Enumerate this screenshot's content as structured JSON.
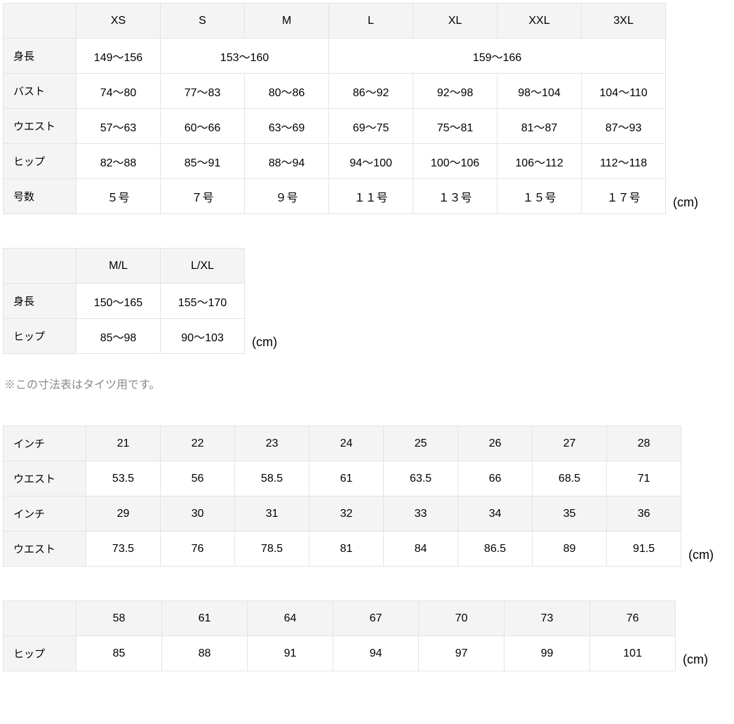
{
  "unit": "(cm)",
  "table1": {
    "sizes": [
      "XS",
      "S",
      "M",
      "L",
      "XL",
      "XXL",
      "3XL"
    ],
    "rows": [
      {
        "label": "身長",
        "cells": [
          {
            "text": "149〜156",
            "span": 1
          },
          {
            "text": "153〜160",
            "span": 2
          },
          {
            "text": "159〜166",
            "span": 4
          }
        ]
      },
      {
        "label": "バスト",
        "cells": [
          {
            "text": "74〜80"
          },
          {
            "text": "77〜83"
          },
          {
            "text": "80〜86"
          },
          {
            "text": "86〜92"
          },
          {
            "text": "92〜98"
          },
          {
            "text": "98〜104"
          },
          {
            "text": "104〜110"
          }
        ]
      },
      {
        "label": "ウエスト",
        "cells": [
          {
            "text": "57〜63"
          },
          {
            "text": "60〜66"
          },
          {
            "text": "63〜69"
          },
          {
            "text": "69〜75"
          },
          {
            "text": "75〜81"
          },
          {
            "text": "81〜87"
          },
          {
            "text": "87〜93"
          }
        ]
      },
      {
        "label": "ヒップ",
        "cells": [
          {
            "text": "82〜88"
          },
          {
            "text": "85〜91"
          },
          {
            "text": "88〜94"
          },
          {
            "text": "94〜100"
          },
          {
            "text": "100〜106"
          },
          {
            "text": "106〜112"
          },
          {
            "text": "112〜118"
          }
        ]
      },
      {
        "label": "号数",
        "cells": [
          {
            "text": "５号"
          },
          {
            "text": "７号"
          },
          {
            "text": "９号"
          },
          {
            "text": "１１号"
          },
          {
            "text": "１３号"
          },
          {
            "text": "１５号"
          },
          {
            "text": "１７号"
          }
        ]
      }
    ]
  },
  "table2": {
    "sizes": [
      "M/L",
      "L/XL"
    ],
    "rows": [
      {
        "label": "身長",
        "cells": [
          {
            "text": "150〜165"
          },
          {
            "text": "155〜170"
          }
        ]
      },
      {
        "label": "ヒップ",
        "cells": [
          {
            "text": "85〜98"
          },
          {
            "text": "90〜103"
          }
        ]
      }
    ]
  },
  "note2": "※この寸法表はタイツ用です。",
  "table3": {
    "rows": [
      {
        "label": "インチ",
        "hdr": true,
        "cells": [
          "21",
          "22",
          "23",
          "24",
          "25",
          "26",
          "27",
          "28"
        ]
      },
      {
        "label": "ウエスト",
        "hdr": false,
        "cells": [
          "53.5",
          "56",
          "58.5",
          "61",
          "63.5",
          "66",
          "68.5",
          "71"
        ]
      },
      {
        "label": "インチ",
        "hdr": true,
        "cells": [
          "29",
          "30",
          "31",
          "32",
          "33",
          "34",
          "35",
          "36"
        ]
      },
      {
        "label": "ウエスト",
        "hdr": false,
        "cells": [
          "73.5",
          "76",
          "78.5",
          "81",
          "84",
          "86.5",
          "89",
          "91.5"
        ]
      }
    ]
  },
  "table4": {
    "sizes": [
      "58",
      "61",
      "64",
      "67",
      "70",
      "73",
      "76"
    ],
    "rows": [
      {
        "label": "ヒップ",
        "cells": [
          "85",
          "88",
          "91",
          "94",
          "97",
          "99",
          "101"
        ]
      }
    ]
  }
}
